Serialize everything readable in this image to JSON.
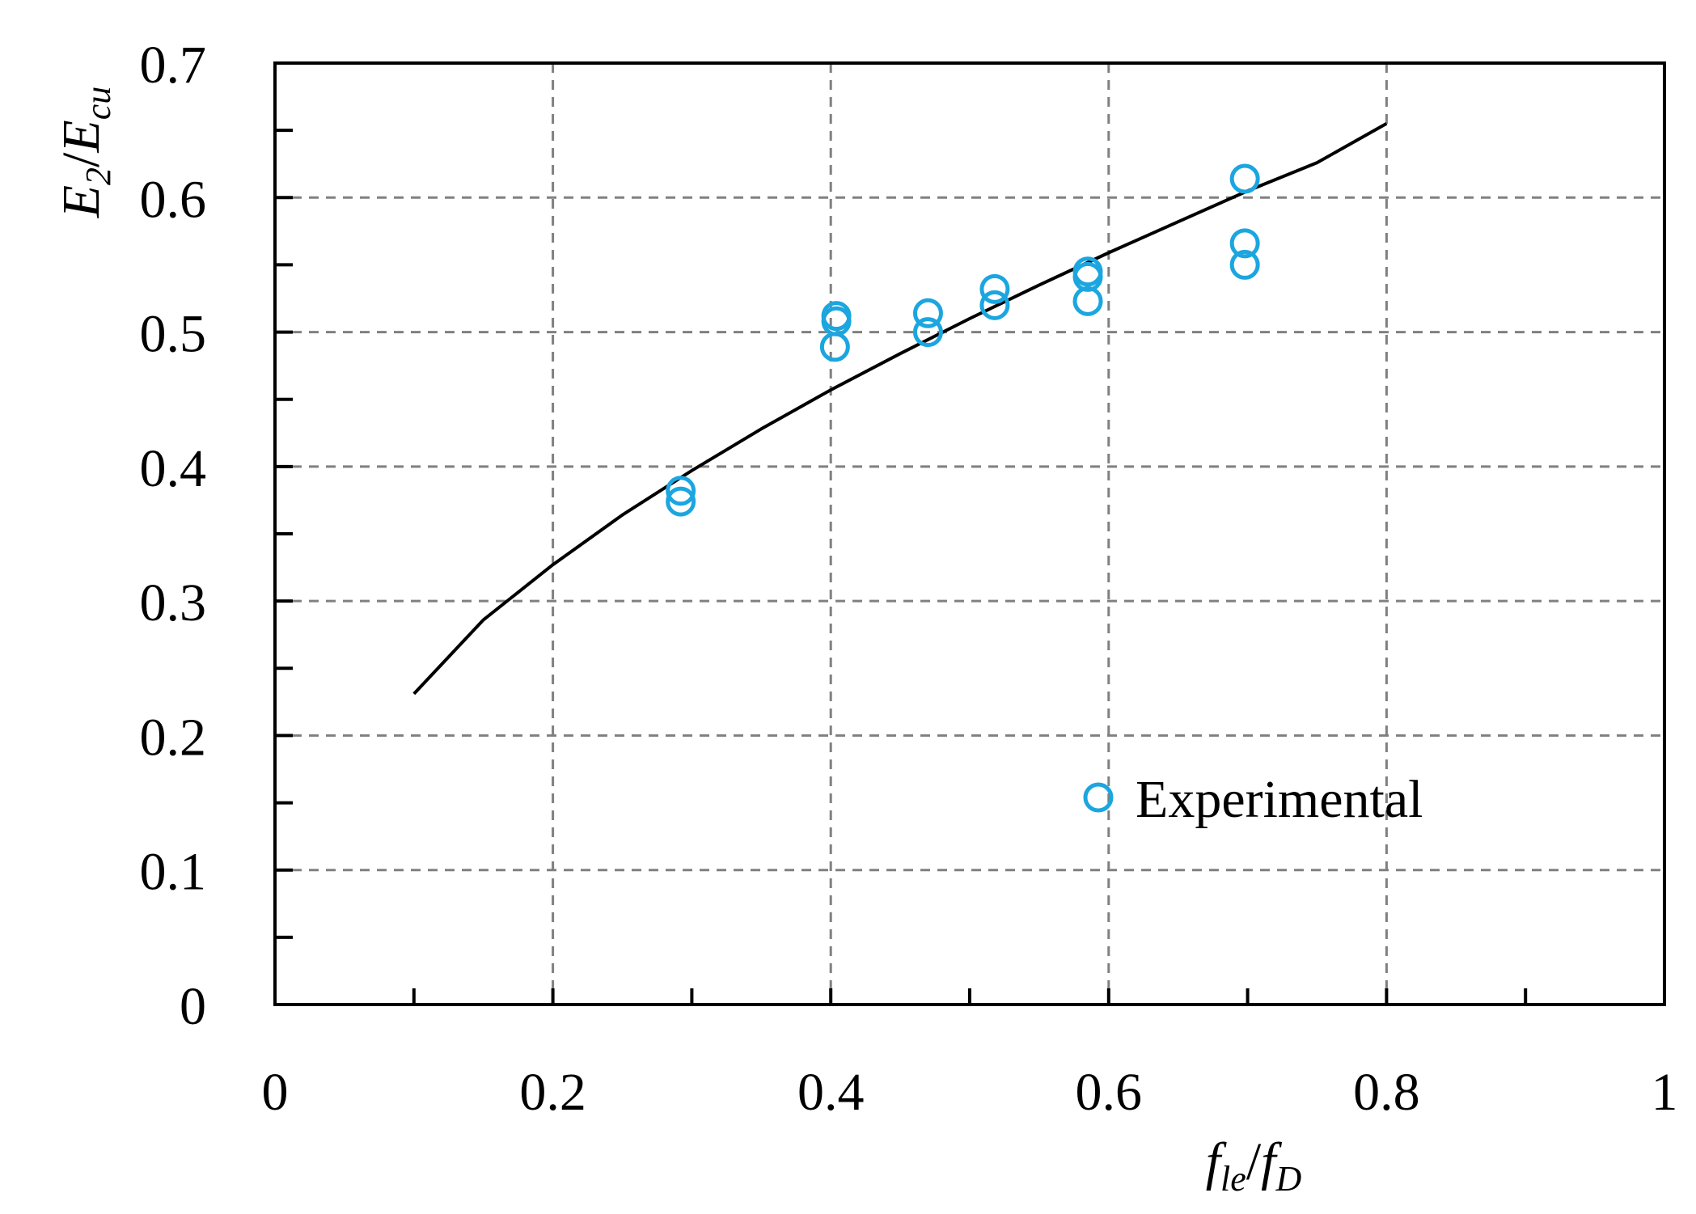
{
  "chart_data": {
    "type": "scatter",
    "xlabel": {
      "main": "f",
      "sub": "le",
      "slash": "/",
      "main2": "f",
      "sub2": "D"
    },
    "ylabel": {
      "main": "E",
      "sub": "2",
      "slash": "/",
      "main2": "E",
      "sub2": "cu"
    },
    "xlim": [
      0,
      1
    ],
    "ylim": [
      0,
      0.7
    ],
    "xticks": [
      0,
      0.2,
      0.4,
      0.6,
      0.8,
      1
    ],
    "xtick_labels": [
      "0",
      "0.2",
      "0.4",
      "0.6",
      "0.8",
      "1"
    ],
    "yticks": [
      0,
      0.1,
      0.2,
      0.3,
      0.4,
      0.5,
      0.6,
      0.7
    ],
    "ytick_labels": [
      "0",
      "0.1",
      "0.2",
      "0.3",
      "0.4",
      "0.5",
      "0.6",
      "0.7"
    ],
    "x_minor_step": 0.1,
    "y_minor_step": 0.05,
    "grid": true,
    "legend_position": "lower-right",
    "series": [
      {
        "name": "",
        "kind": "line",
        "color": "#000000",
        "x": [
          0.1,
          0.15,
          0.2,
          0.25,
          0.3,
          0.35,
          0.4,
          0.45,
          0.5,
          0.55,
          0.6,
          0.65,
          0.7,
          0.75,
          0.8
        ],
        "y": [
          0.231,
          0.286,
          0.327,
          0.364,
          0.397,
          0.428,
          0.457,
          0.484,
          0.51,
          0.535,
          0.559,
          0.582,
          0.605,
          0.626,
          0.655
        ]
      },
      {
        "name": "Experimental",
        "kind": "scatter",
        "marker": "open-circle",
        "color": "#1ba6e0",
        "x": [
          0.292,
          0.292,
          0.404,
          0.404,
          0.403,
          0.47,
          0.47,
          0.518,
          0.518,
          0.585,
          0.585,
          0.585,
          0.698,
          0.698,
          0.698
        ],
        "y": [
          0.382,
          0.374,
          0.512,
          0.508,
          0.489,
          0.514,
          0.5,
          0.532,
          0.52,
          0.545,
          0.541,
          0.523,
          0.614,
          0.566,
          0.55
        ]
      }
    ]
  }
}
